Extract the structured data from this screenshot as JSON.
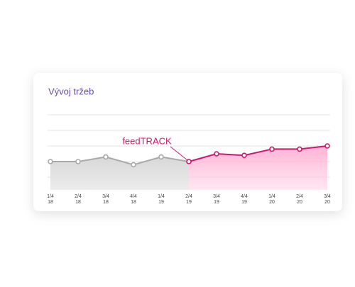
{
  "chart_data": {
    "type": "line",
    "title": "Vývoj tržeb",
    "categories": [
      [
        "1/4",
        "18"
      ],
      [
        "2/4",
        "18"
      ],
      [
        "3/4",
        "18"
      ],
      [
        "4/4",
        "18"
      ],
      [
        "1/4",
        "19"
      ],
      [
        "2/4",
        "19"
      ],
      [
        "3/4",
        "19"
      ],
      [
        "4/4",
        "19"
      ],
      [
        "1/4",
        "20"
      ],
      [
        "2/4",
        "20"
      ],
      [
        "3/4",
        "20"
      ]
    ],
    "series": [
      {
        "color": "#a9a9a9",
        "values": [
          2.0,
          2.0,
          2.3,
          1.8,
          2.3,
          2.0,
          null,
          null,
          null,
          null,
          null
        ]
      },
      {
        "color": "#d0166f",
        "values": [
          null,
          null,
          null,
          null,
          null,
          2.0,
          2.5,
          2.4,
          2.8,
          2.8,
          3.0
        ]
      }
    ],
    "annotation": "feedTRACK",
    "ylim": [
      0,
      5
    ],
    "yticks": [
      1,
      2,
      3,
      4,
      5
    ],
    "grid": true
  }
}
